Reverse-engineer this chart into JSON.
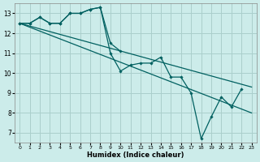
{
  "xlabel": "Humidex (Indice chaleur)",
  "bg_color": "#ccecea",
  "grid_color": "#aacfcc",
  "line_color": "#006060",
  "xlim": [
    -0.5,
    23.5
  ],
  "ylim": [
    6.5,
    13.5
  ],
  "yticks": [
    7,
    8,
    9,
    10,
    11,
    12,
    13
  ],
  "xticks": [
    0,
    1,
    2,
    3,
    4,
    5,
    6,
    7,
    8,
    9,
    10,
    11,
    12,
    13,
    14,
    15,
    16,
    17,
    18,
    19,
    20,
    21,
    22,
    23
  ],
  "line1_x": [
    0,
    1,
    2,
    3,
    4,
    5,
    6,
    7,
    8,
    9,
    10,
    11,
    12,
    13,
    14,
    15,
    16,
    17,
    18,
    19,
    20,
    21,
    22
  ],
  "line1_y": [
    12.5,
    12.5,
    12.8,
    12.5,
    12.5,
    13.0,
    13.0,
    13.2,
    13.3,
    11.0,
    10.1,
    10.4,
    10.5,
    10.5,
    10.8,
    9.8,
    9.8,
    9.0,
    6.7,
    7.8,
    8.8,
    8.3,
    9.2
  ],
  "line2_x": [
    0,
    1,
    2,
    3,
    4,
    5,
    6,
    7,
    8,
    9,
    10
  ],
  "line2_y": [
    12.5,
    12.5,
    12.8,
    12.5,
    12.5,
    13.0,
    13.0,
    13.2,
    13.3,
    11.5,
    11.1
  ],
  "line3_x": [
    0,
    23
  ],
  "line3_y": [
    12.5,
    9.3
  ],
  "line4_x": [
    0,
    23
  ],
  "line4_y": [
    12.5,
    8.0
  ]
}
